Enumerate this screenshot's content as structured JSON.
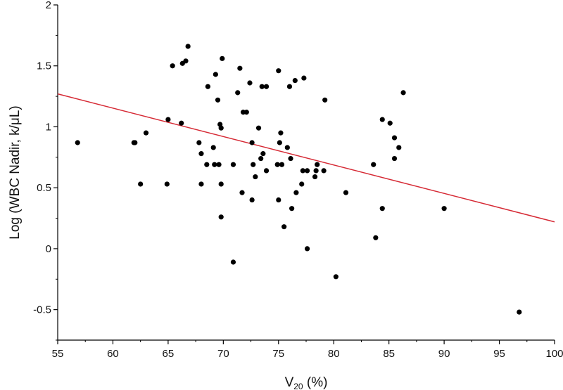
{
  "chart_data": {
    "type": "scatter",
    "title": "",
    "xlabel": {
      "main": "V",
      "sub": "20",
      "rest": " (%)"
    },
    "ylabel": "Log (WBC Nadir, k/μL)",
    "xlim": [
      55,
      100
    ],
    "ylim": [
      -0.75,
      2
    ],
    "xticks": [
      "55",
      "60",
      "65",
      "70",
      "75",
      "80",
      "85",
      "90",
      "95",
      "100"
    ],
    "yticks": [
      "-0.5",
      "0",
      "0.5",
      "1",
      "1.5",
      "2"
    ],
    "grid": false,
    "legend": "none",
    "colors": {
      "points": "#000000",
      "fit_line": "#d62a35",
      "axis": "#000000"
    },
    "fit_line": {
      "x": [
        55,
        100
      ],
      "y": [
        1.27,
        0.22
      ]
    },
    "points": [
      {
        "x": 56.8,
        "y": 0.87
      },
      {
        "x": 61.9,
        "y": 0.87
      },
      {
        "x": 62.0,
        "y": 0.87
      },
      {
        "x": 62.5,
        "y": 0.53
      },
      {
        "x": 63.0,
        "y": 0.95
      },
      {
        "x": 64.9,
        "y": 0.53
      },
      {
        "x": 65.0,
        "y": 1.06
      },
      {
        "x": 65.4,
        "y": 1.5
      },
      {
        "x": 66.2,
        "y": 1.03
      },
      {
        "x": 66.3,
        "y": 1.52
      },
      {
        "x": 66.6,
        "y": 1.54
      },
      {
        "x": 66.8,
        "y": 1.66
      },
      {
        "x": 67.8,
        "y": 0.87
      },
      {
        "x": 68.0,
        "y": 0.78
      },
      {
        "x": 68.0,
        "y": 0.53
      },
      {
        "x": 68.5,
        "y": 0.69
      },
      {
        "x": 68.6,
        "y": 1.33
      },
      {
        "x": 69.1,
        "y": 0.83
      },
      {
        "x": 69.2,
        "y": 0.69
      },
      {
        "x": 69.3,
        "y": 1.43
      },
      {
        "x": 69.5,
        "y": 1.22
      },
      {
        "x": 69.6,
        "y": 0.69
      },
      {
        "x": 69.7,
        "y": 1.02
      },
      {
        "x": 69.8,
        "y": 0.99
      },
      {
        "x": 69.8,
        "y": 0.53
      },
      {
        "x": 69.8,
        "y": 0.26
      },
      {
        "x": 69.9,
        "y": 1.56
      },
      {
        "x": 70.9,
        "y": 0.69
      },
      {
        "x": 70.9,
        "y": -0.11
      },
      {
        "x": 71.3,
        "y": 1.28
      },
      {
        "x": 71.5,
        "y": 1.48
      },
      {
        "x": 71.7,
        "y": 0.46
      },
      {
        "x": 71.8,
        "y": 1.12
      },
      {
        "x": 72.1,
        "y": 1.12
      },
      {
        "x": 72.4,
        "y": 1.36
      },
      {
        "x": 72.6,
        "y": 0.87
      },
      {
        "x": 72.6,
        "y": 0.4
      },
      {
        "x": 72.7,
        "y": 0.69
      },
      {
        "x": 72.9,
        "y": 0.59
      },
      {
        "x": 73.2,
        "y": 0.99
      },
      {
        "x": 73.4,
        "y": 0.74
      },
      {
        "x": 73.5,
        "y": 1.33
      },
      {
        "x": 73.6,
        "y": 0.78
      },
      {
        "x": 73.9,
        "y": 1.33
      },
      {
        "x": 73.9,
        "y": 0.64
      },
      {
        "x": 74.9,
        "y": 0.69
      },
      {
        "x": 75.0,
        "y": 1.46
      },
      {
        "x": 75.0,
        "y": 0.4
      },
      {
        "x": 75.1,
        "y": 0.87
      },
      {
        "x": 75.2,
        "y": 0.95
      },
      {
        "x": 75.3,
        "y": 0.69
      },
      {
        "x": 75.5,
        "y": 0.18
      },
      {
        "x": 75.8,
        "y": 0.83
      },
      {
        "x": 76.0,
        "y": 1.33
      },
      {
        "x": 76.1,
        "y": 0.74
      },
      {
        "x": 76.2,
        "y": 0.33
      },
      {
        "x": 76.5,
        "y": 1.38
      },
      {
        "x": 76.6,
        "y": 0.46
      },
      {
        "x": 77.1,
        "y": 0.53
      },
      {
        "x": 77.2,
        "y": 0.64
      },
      {
        "x": 77.3,
        "y": 1.4
      },
      {
        "x": 77.6,
        "y": 0.64
      },
      {
        "x": 77.6,
        "y": 0.0
      },
      {
        "x": 78.3,
        "y": 0.59
      },
      {
        "x": 78.4,
        "y": 0.64
      },
      {
        "x": 78.5,
        "y": 0.69
      },
      {
        "x": 79.1,
        "y": 0.64
      },
      {
        "x": 79.2,
        "y": 1.22
      },
      {
        "x": 80.2,
        "y": -0.23
      },
      {
        "x": 81.1,
        "y": 0.46
      },
      {
        "x": 83.6,
        "y": 0.69
      },
      {
        "x": 83.8,
        "y": 0.09
      },
      {
        "x": 84.4,
        "y": 1.06
      },
      {
        "x": 84.4,
        "y": 0.33
      },
      {
        "x": 85.1,
        "y": 1.03
      },
      {
        "x": 85.5,
        "y": 0.91
      },
      {
        "x": 85.5,
        "y": 0.74
      },
      {
        "x": 85.9,
        "y": 0.83
      },
      {
        "x": 86.3,
        "y": 1.28
      },
      {
        "x": 90.0,
        "y": 0.33
      },
      {
        "x": 96.8,
        "y": -0.52
      }
    ]
  }
}
